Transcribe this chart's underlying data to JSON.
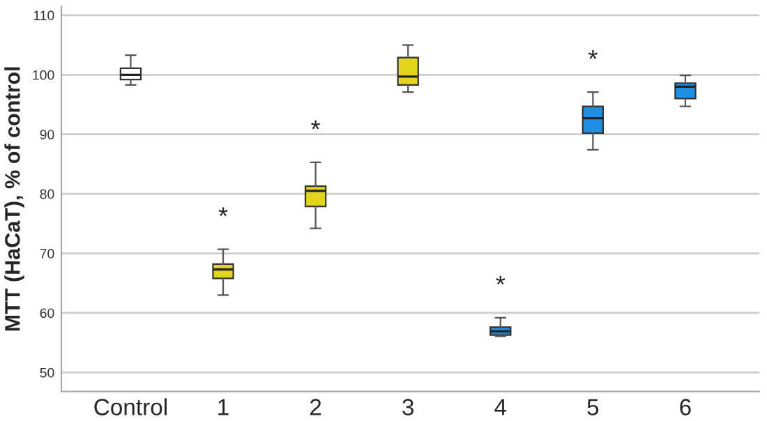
{
  "chart_data": {
    "type": "box",
    "ylabel": "MTT (HaCaT), % of control",
    "categories": [
      "Control",
      "1",
      "2",
      "3",
      "4",
      "5",
      "6"
    ],
    "colors": [
      "#ffffff",
      "#e3d51c",
      "#e3d51c",
      "#e3d51c",
      "#1e8fe3",
      "#1e8fe3",
      "#1e8fe3"
    ],
    "boxes": [
      {
        "low": 98.3,
        "q1": 99.2,
        "median": 100,
        "q3": 101.1,
        "high": 103.3
      },
      {
        "low": 63.0,
        "q1": 65.8,
        "median": 67.3,
        "q3": 68.2,
        "high": 70.7
      },
      {
        "low": 74.2,
        "q1": 77.9,
        "median": 80.5,
        "q3": 81.3,
        "high": 85.3
      },
      {
        "low": 97.1,
        "q1": 98.3,
        "median": 99.7,
        "q3": 102.9,
        "high": 105.0
      },
      {
        "low": 56.1,
        "q1": 56.3,
        "median": 56.9,
        "q3": 57.6,
        "high": 59.2
      },
      {
        "low": 87.4,
        "q1": 90.2,
        "median": 92.7,
        "q3": 94.7,
        "high": 97.1
      },
      {
        "low": 94.7,
        "q1": 96.0,
        "median": 98.0,
        "q3": 98.6,
        "high": 99.9
      }
    ],
    "ylim": [
      46.8,
      111.5
    ],
    "yticks": [
      50,
      60,
      70,
      80,
      90,
      100,
      110
    ],
    "grid": "y",
    "annotations": [
      "*",
      "*",
      "*",
      "*"
    ]
  }
}
